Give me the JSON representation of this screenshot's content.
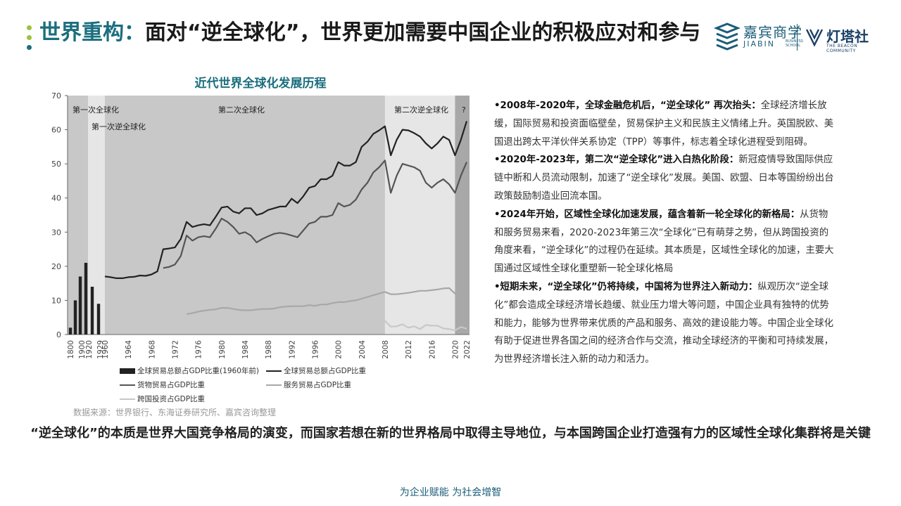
{
  "title": {
    "highlight": "世界重构：",
    "rest": "面对“逆全球化”，世界更加需要中国企业的积极应对和参与"
  },
  "logos": {
    "jiabin_cn": "嘉宾商学",
    "jiabin_en": "JIABIN",
    "jiabin_sub": "BUSINESS SCHOOL",
    "dengta_cn": "灯塔社",
    "dengta_en": "THE BEACON COMMUNITY"
  },
  "colors": {
    "accent": "#1b6e7e",
    "bullet_green": "#9bc33c",
    "bullet_blue": "#1b6e7e"
  },
  "chart_data": {
    "type": "line",
    "title": "近代世界全球化发展历程",
    "ylim": [
      0,
      70
    ],
    "yticks": [
      0,
      10,
      20,
      30,
      40,
      50,
      60,
      70
    ],
    "grid": false,
    "x_tick_labels": [
      "1800",
      "1900",
      "1920",
      "1929",
      "1960",
      "1964",
      "1968",
      "1972",
      "1976",
      "1980",
      "1984",
      "1988",
      "1992",
      "1996",
      "2000",
      "2004",
      "2008",
      "2012",
      "2016",
      "2020",
      "2022"
    ],
    "eras": [
      {
        "label": "第一次全球化",
        "from": "1800",
        "to": "1914",
        "shade": "#c8c8c8"
      },
      {
        "label": "第一次逆全球化",
        "from": "1914",
        "to": "1960",
        "shade": "#e6e6e6"
      },
      {
        "label": "第二次全球化",
        "from": "1960",
        "to": "2008",
        "shade": "#c8c8c8"
      },
      {
        "label": "第二次逆全球化",
        "from": "2008",
        "to": "2020",
        "shade": "#e6e6e6"
      },
      {
        "label": "?",
        "from": "2020",
        "to": "2022",
        "shade": "#a8a8a8"
      }
    ],
    "bar_series": {
      "name": "全球贸易总额占GDP比重(1960年前)",
      "x": [
        "1800",
        "1870",
        "1900",
        "1913",
        "1920",
        "1929"
      ],
      "values": [
        2,
        10,
        17,
        21,
        14,
        9
      ]
    },
    "line_x": [
      "1960",
      "1961",
      "1962",
      "1963",
      "1964",
      "1965",
      "1966",
      "1967",
      "1968",
      "1969",
      "1970",
      "1971",
      "1972",
      "1973",
      "1974",
      "1975",
      "1976",
      "1977",
      "1978",
      "1979",
      "1980",
      "1981",
      "1982",
      "1983",
      "1984",
      "1985",
      "1986",
      "1987",
      "1988",
      "1989",
      "1990",
      "1991",
      "1992",
      "1993",
      "1994",
      "1995",
      "1996",
      "1997",
      "1998",
      "1999",
      "2000",
      "2001",
      "2002",
      "2003",
      "2004",
      "2005",
      "2006",
      "2007",
      "2008",
      "2009",
      "2010",
      "2011",
      "2012",
      "2013",
      "2014",
      "2015",
      "2016",
      "2017",
      "2018",
      "2019",
      "2020",
      "2021",
      "2022"
    ],
    "series": [
      {
        "name": "全球贸易总额占GDP比重",
        "color": "#222222",
        "width": 2.2,
        "start": "1960",
        "values": [
          17,
          16.8,
          16.5,
          16.5,
          16.8,
          16.9,
          17.3,
          17.2,
          17.6,
          18.5,
          25,
          25.2,
          25.5,
          28,
          33,
          31.5,
          32,
          32.3,
          32,
          34.5,
          37.2,
          37.5,
          36,
          35.5,
          37,
          37,
          35,
          35.5,
          36.5,
          37,
          37.5,
          37.5,
          39.8,
          38.5,
          40.5,
          43,
          43.5,
          45.5,
          45.5,
          46.5,
          50.5,
          49.5,
          49.5,
          50.5,
          55,
          56.5,
          58.8,
          59.8,
          61,
          52.5,
          57,
          60,
          59.8,
          59,
          58,
          56,
          54.5,
          56,
          58,
          57,
          52.5,
          57,
          62.5
        ]
      },
      {
        "name": "货物贸易占GDP比重",
        "color": "#555555",
        "width": 2.2,
        "start": "1970",
        "values": [
          null,
          null,
          null,
          null,
          null,
          null,
          null,
          null,
          null,
          null,
          19.5,
          19.8,
          20.5,
          23,
          29,
          27.5,
          28.5,
          28.8,
          28.5,
          31,
          34,
          33,
          31.5,
          29.5,
          30,
          29,
          27,
          28,
          28.8,
          29.5,
          29.8,
          29.5,
          29,
          28.5,
          30.5,
          32.5,
          33,
          34.5,
          34.5,
          35,
          38.5,
          37.5,
          38,
          39.5,
          42.5,
          44.5,
          47.5,
          49,
          51,
          41.5,
          46.5,
          50,
          49.5,
          49,
          48,
          44.5,
          43,
          44.5,
          45.5,
          44,
          41.5,
          46.5,
          50.5
        ]
      },
      {
        "name": "服务贸易占GDP比重",
        "color": "#a8a8a8",
        "width": 2.2,
        "start": "1974",
        "values": [
          null,
          null,
          null,
          null,
          null,
          null,
          null,
          null,
          null,
          null,
          null,
          null,
          null,
          null,
          6,
          6.3,
          6.7,
          7,
          7.2,
          7.4,
          7.8,
          7.8,
          7.5,
          7.2,
          7.1,
          7.1,
          7.3,
          7.5,
          7.5,
          7.6,
          8,
          8.2,
          8.3,
          8.3,
          8.3,
          8.6,
          8.4,
          8.8,
          8.8,
          9.2,
          9.5,
          9.5,
          9.8,
          10,
          10.5,
          11,
          11.5,
          12,
          12.5,
          11.8,
          11.8,
          12,
          12.2,
          12.5,
          12.8,
          12.8,
          13,
          13.2,
          13.5,
          13.6,
          12,
          12.5,
          13.5
        ]
      },
      {
        "name": "跨国投资占GDP比重",
        "color": "#c8c8c8",
        "width": 2.2,
        "start": "1970",
        "values": [
          null,
          null,
          null,
          null,
          null,
          null,
          null,
          null,
          null,
          null,
          0.6,
          0.5,
          0.6,
          0.7,
          0.6,
          0.5,
          0.5,
          0.6,
          0.6,
          0.7,
          0.5,
          0.6,
          0.5,
          0.5,
          0.5,
          0.5,
          0.6,
          0.8,
          1,
          1.2,
          1.4,
          1.1,
          0.9,
          1,
          1.2,
          1.3,
          1.4,
          1.7,
          2.3,
          3.5,
          4.2,
          2.5,
          2,
          2,
          2.6,
          3,
          3.8,
          5.3,
          4,
          2.3,
          2.4,
          3,
          2,
          2.4,
          1.6,
          2.8,
          2.6,
          2.6,
          1.8,
          1.6,
          1.2,
          2.2,
          1.7
        ]
      }
    ],
    "legend": [
      {
        "label": "全球贸易总额占GDP比重(1960年前)",
        "kind": "bar",
        "color": "#222222"
      },
      {
        "label": "全球贸易总额占GDP比重",
        "kind": "line",
        "color": "#222222"
      },
      {
        "label": "货物贸易占GDP比重",
        "kind": "line",
        "color": "#555555"
      },
      {
        "label": "服务贸易占GDP比重",
        "kind": "line",
        "color": "#a8a8a8"
      },
      {
        "label": "跨国投资占GDP比重",
        "kind": "line",
        "color": "#c8c8c8"
      }
    ]
  },
  "source": "数据来源：世界银行、东海证券研究所、嘉宾咨询整理",
  "points": [
    {
      "head": "•2008年-2020年，全球金融危机后，“逆全球化” 再次抬头：",
      "body": "全球经济增长放缓，国际贸易和投资面临壁垒，贸易保护主义和民族主义情绪上升。英国脱欧、美国退出跨太平洋伙伴关系协定（TPP）等事件，标志着全球化进程受到阻碍。"
    },
    {
      "head": "•2020年-2023年，第二次“逆全球化”进入白热化阶段：",
      "body": "新冠疫情导致国际供应链中断和人员流动限制，加速了“逆全球化”发展。美国、欧盟、日本等国纷纷出台政策鼓励制造业回流本国。"
    },
    {
      "head": "•2024年开始，区域性全球化加速发展，蕴含着新一轮全球化的新格局：",
      "body": "从货物和服务贸易来看，2020-2023年第三次“全球化”已有萌芽之势，但从跨国投资的角度来看，“逆全球化”的过程仍在延续。其本质是，区域性全球化的加速，主要大国通过区域性全球化重塑新一轮全球化格局"
    },
    {
      "head": "•短期未来，“逆全球化”仍将持续，中国将为世界注入新动力：",
      "body": "纵观历次“逆全球化”都会造成全球经济增长趋缓、就业压力增大等问题，中国企业具有独特的优势和能力，能够为世界带来优质的产品和服务、高效的建设能力等。中国企业全球化有助于促进世界各国之间的经济合作与交流，推动全球经济的平衡和可持续发展，为世界经济增长注入新的动力和活力。"
    }
  ],
  "conclusion": "“逆全球化”的本质是世界大国竞争格局的演变，而国家若想在新的世界格局中取得主导地位，与本国跨国企业打造强有力的区域性全球化集群将是关键",
  "footer": "为企业赋能  为社会增智"
}
